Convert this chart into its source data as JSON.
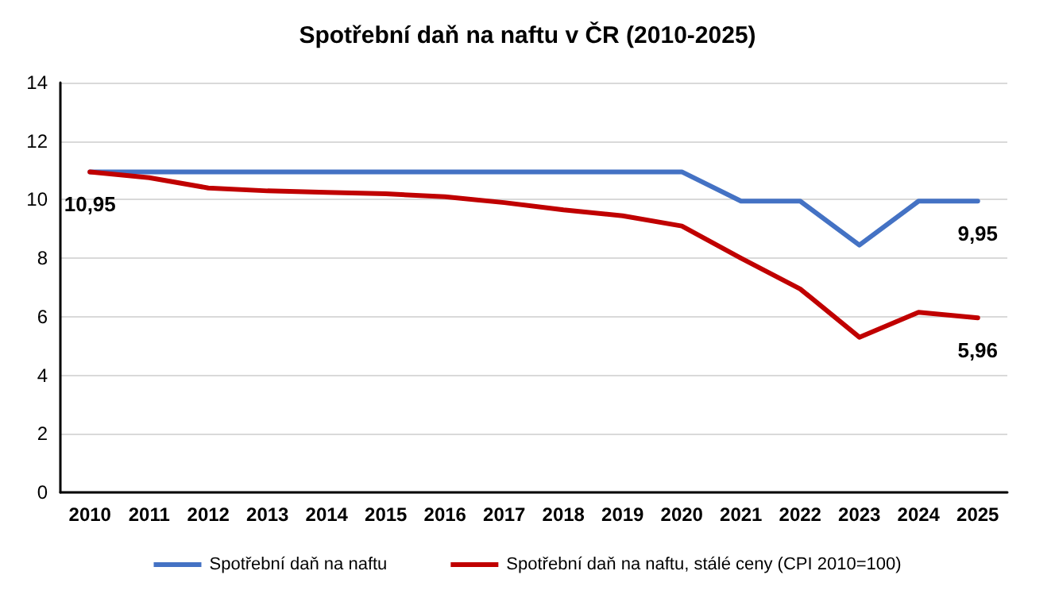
{
  "chart_data": {
    "type": "line",
    "title": "Spotřební daň na naftu v ČR (2010-2025)",
    "categories": [
      "2010",
      "2011",
      "2012",
      "2013",
      "2014",
      "2015",
      "2016",
      "2017",
      "2018",
      "2019",
      "2020",
      "2021",
      "2022",
      "2023",
      "2024",
      "2025"
    ],
    "series": [
      {
        "name": "Spotřební daň na naftu",
        "color": "#4472c4",
        "values": [
          10.95,
          10.95,
          10.95,
          10.95,
          10.95,
          10.95,
          10.95,
          10.95,
          10.95,
          10.95,
          10.95,
          9.95,
          9.95,
          8.45,
          9.95,
          9.95
        ],
        "value_labels": [
          "10,95",
          null,
          null,
          null,
          null,
          null,
          null,
          null,
          null,
          null,
          null,
          null,
          null,
          null,
          null,
          "9,95"
        ]
      },
      {
        "name": "Spotřební daň na naftu, stálé ceny (CPI 2010=100)",
        "color": "#c00000",
        "values": [
          10.95,
          10.75,
          10.4,
          10.3,
          10.25,
          10.2,
          10.1,
          9.9,
          9.65,
          9.45,
          9.1,
          8.0,
          6.95,
          5.3,
          6.15,
          5.96
        ],
        "value_labels": [
          null,
          null,
          null,
          null,
          null,
          null,
          null,
          null,
          null,
          null,
          null,
          null,
          null,
          null,
          null,
          "5,96"
        ]
      }
    ],
    "ylim": [
      0,
      14
    ],
    "yticks": [
      0,
      2,
      4,
      6,
      8,
      10,
      12,
      14
    ],
    "grid": "y",
    "legend": "bottom",
    "marker": "none",
    "line_style": "solid"
  }
}
